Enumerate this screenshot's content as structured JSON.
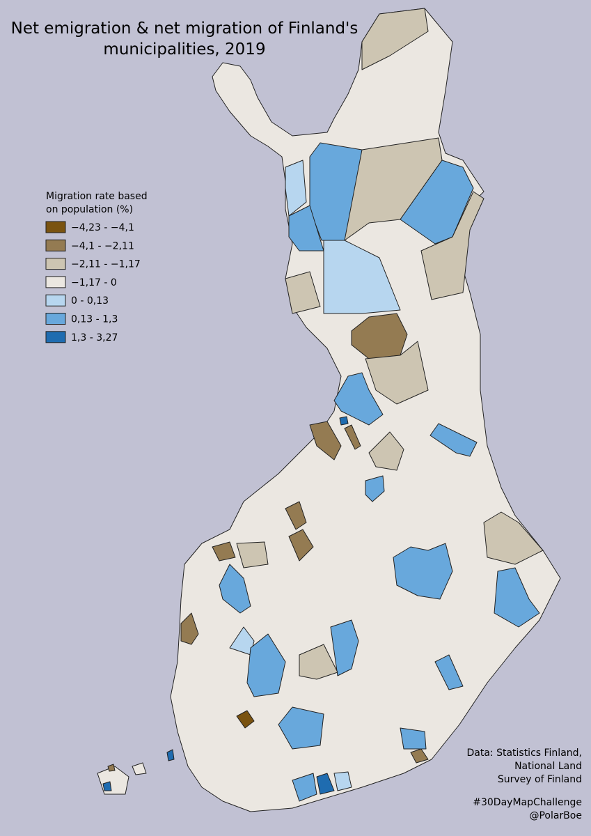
{
  "title": [
    "Net emigration & net migration of Finland's",
    "municipalities, 2019"
  ],
  "legend": {
    "title": [
      "Migration rate based",
      "on population (%)"
    ],
    "items": [
      {
        "label": "−4,23 - −4,1",
        "color": "#7a5310"
      },
      {
        "label": "−4,1 - −2,11",
        "color": "#947b52"
      },
      {
        "label": "−2,11 - −1,17",
        "color": "#cdc5b2"
      },
      {
        "label": "−1,17 - 0",
        "color": "#ebe7e1"
      },
      {
        "label": "0 - 0,13",
        "color": "#b7d6ef"
      },
      {
        "label": "0,13 - 1,3",
        "color": "#68a8dc"
      },
      {
        "label": "1,3 - 3,27",
        "color": "#1f6cb0"
      }
    ]
  },
  "source": [
    "Data: Statistics Finland,",
    "National Land",
    "Survey of Finland"
  ],
  "credits": [
    "#30DayMapChallenge",
    "@PolarBoe"
  ]
}
